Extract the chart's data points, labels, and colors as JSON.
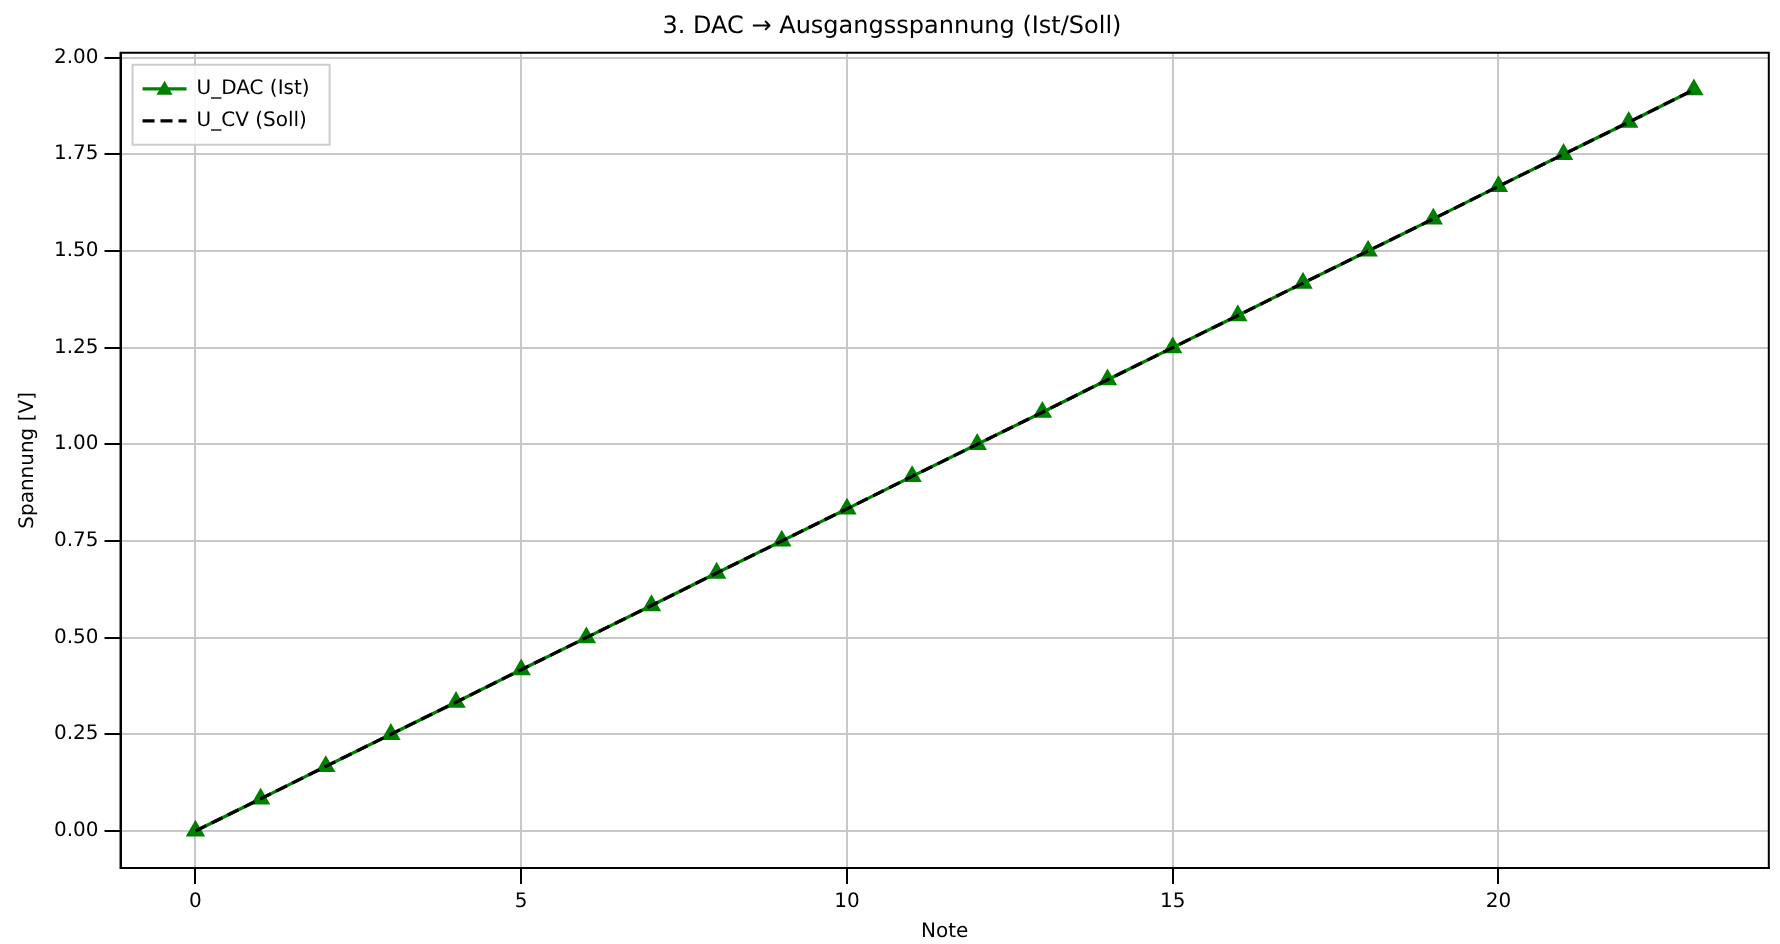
{
  "chart_data": {
    "type": "line",
    "title": "3. DAC → Ausgangsspannung (Ist/Soll)",
    "xlabel": "Note",
    "ylabel": "Spannung [V]",
    "x": [
      0,
      1,
      2,
      3,
      4,
      5,
      6,
      7,
      8,
      9,
      10,
      11,
      12,
      13,
      14,
      15,
      16,
      17,
      18,
      19,
      20,
      21,
      22,
      23
    ],
    "series": [
      {
        "name": "U_DAC (Ist)",
        "color": "#008000",
        "marker": "triangle",
        "line_style": "solid",
        "values": [
          0,
          0.083,
          0.167,
          0.25,
          0.333,
          0.417,
          0.5,
          0.583,
          0.667,
          0.75,
          0.833,
          0.917,
          1,
          1.083,
          1.167,
          1.25,
          1.333,
          1.417,
          1.5,
          1.583,
          1.667,
          1.75,
          1.833,
          1.917
        ]
      },
      {
        "name": "U_CV (Soll)",
        "color": "#000000",
        "marker": "none",
        "line_style": "dashed",
        "values": [
          0,
          0.083,
          0.167,
          0.25,
          0.333,
          0.417,
          0.5,
          0.583,
          0.667,
          0.75,
          0.833,
          0.917,
          1,
          1.083,
          1.167,
          1.25,
          1.333,
          1.417,
          1.5,
          1.583,
          1.667,
          1.75,
          1.833,
          1.917
        ]
      }
    ],
    "xlim": [
      -1.15,
      24.15
    ],
    "xticks": [
      0,
      5,
      10,
      15,
      20
    ],
    "ylim": [
      -0.0958,
      2.0125
    ],
    "yticks": [
      {
        "value": 0,
        "label": "0.00"
      },
      {
        "value": 0.25,
        "label": "0.25"
      },
      {
        "value": 0.5,
        "label": "0.50"
      },
      {
        "value": 0.75,
        "label": "0.75"
      },
      {
        "value": 1,
        "label": "1.00"
      },
      {
        "value": 1.25,
        "label": "1.25"
      },
      {
        "value": 1.5,
        "label": "1.50"
      },
      {
        "value": 1.75,
        "label": "1.75"
      },
      {
        "value": 2,
        "label": "2.00"
      }
    ],
    "grid": true,
    "legend": "top left"
  }
}
